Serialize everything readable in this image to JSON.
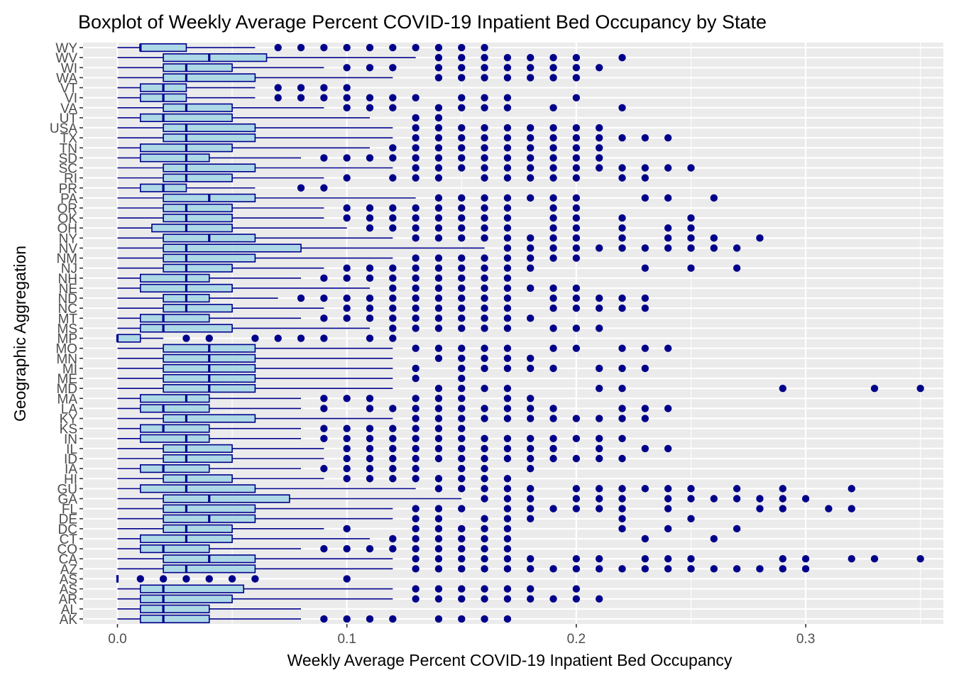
{
  "chart_data": {
    "type": "boxplot",
    "title": "Boxplot of Weekly Average Percent COVID-19 Inpatient Bed Occupancy by State",
    "xlabel": "Weekly Average Percent COVID-19 Inpatient Bed Occupancy",
    "ylabel": "Geographic Aggregation",
    "xlim": [
      -0.015,
      0.36
    ],
    "x_ticks": [
      0.0,
      0.1,
      0.2,
      0.3
    ],
    "x_tick_labels": [
      "0.0",
      "0.1",
      "0.2",
      "0.3"
    ],
    "grid": true,
    "colors": {
      "panel": "#EBEBEB",
      "grid": "#FFFFFF",
      "box_fill": "#ADD8E6",
      "box_line": "#00008B",
      "outlier": "#00008B"
    },
    "boxes": [
      {
        "name": "AK",
        "wmin": 0.0,
        "q1": 0.01,
        "median": 0.02,
        "q3": 0.04,
        "wmax": 0.08,
        "outliers": [
          0.09,
          0.1,
          0.11,
          0.12,
          0.14,
          0.15,
          0.16,
          0.17
        ]
      },
      {
        "name": "AL",
        "wmin": 0.0,
        "q1": 0.01,
        "median": 0.02,
        "q3": 0.04,
        "wmax": 0.08,
        "outliers": []
      },
      {
        "name": "AR",
        "wmin": 0.0,
        "q1": 0.01,
        "median": 0.02,
        "q3": 0.05,
        "wmax": 0.12,
        "outliers": [
          0.13,
          0.14,
          0.15,
          0.16,
          0.17,
          0.18,
          0.19,
          0.2,
          0.21
        ]
      },
      {
        "name": "AS",
        "wmin": 0.0,
        "q1": 0.01,
        "median": 0.02,
        "q3": 0.055,
        "wmax": 0.12,
        "outliers": [
          0.13,
          0.14,
          0.15,
          0.16,
          0.17,
          0.18,
          0.2
        ]
      },
      {
        "name": "AS",
        "wmin": 0.0,
        "q1": 0.0,
        "median": 0.0,
        "q3": 0.0,
        "wmax": 0.0,
        "outliers": [
          0.01,
          0.02,
          0.03,
          0.04,
          0.05,
          0.06,
          0.1
        ]
      },
      {
        "name": "AZ",
        "wmin": 0.0,
        "q1": 0.02,
        "median": 0.03,
        "q3": 0.06,
        "wmax": 0.12,
        "outliers": [
          0.13,
          0.14,
          0.15,
          0.16,
          0.17,
          0.18,
          0.19,
          0.2,
          0.21,
          0.22,
          0.23,
          0.24,
          0.25,
          0.26,
          0.27,
          0.28,
          0.29,
          0.3
        ]
      },
      {
        "name": "CA",
        "wmin": 0.0,
        "q1": 0.02,
        "median": 0.04,
        "q3": 0.06,
        "wmax": 0.12,
        "outliers": [
          0.13,
          0.14,
          0.15,
          0.16,
          0.17,
          0.18,
          0.2,
          0.21,
          0.23,
          0.24,
          0.25,
          0.29,
          0.3,
          0.32,
          0.33,
          0.35
        ]
      },
      {
        "name": "CO",
        "wmin": 0.0,
        "q1": 0.01,
        "median": 0.02,
        "q3": 0.04,
        "wmax": 0.08,
        "outliers": [
          0.09,
          0.1,
          0.11,
          0.12,
          0.13,
          0.14,
          0.15,
          0.16,
          0.17
        ]
      },
      {
        "name": "CT",
        "wmin": 0.0,
        "q1": 0.01,
        "median": 0.03,
        "q3": 0.05,
        "wmax": 0.11,
        "outliers": [
          0.12,
          0.13,
          0.14,
          0.15,
          0.16,
          0.17,
          0.23,
          0.26
        ]
      },
      {
        "name": "DC",
        "wmin": 0.0,
        "q1": 0.02,
        "median": 0.03,
        "q3": 0.05,
        "wmax": 0.09,
        "outliers": [
          0.1,
          0.13,
          0.14,
          0.15,
          0.16,
          0.17,
          0.22,
          0.24,
          0.27
        ]
      },
      {
        "name": "DE",
        "wmin": 0.0,
        "q1": 0.02,
        "median": 0.04,
        "q3": 0.06,
        "wmax": 0.12,
        "outliers": [
          0.13,
          0.14,
          0.16,
          0.17,
          0.18,
          0.22,
          0.25
        ]
      },
      {
        "name": "FL",
        "wmin": 0.0,
        "q1": 0.02,
        "median": 0.03,
        "q3": 0.06,
        "wmax": 0.12,
        "outliers": [
          0.13,
          0.14,
          0.15,
          0.17,
          0.18,
          0.19,
          0.2,
          0.21,
          0.22,
          0.24,
          0.28,
          0.29,
          0.31,
          0.32
        ]
      },
      {
        "name": "GA",
        "wmin": 0.0,
        "q1": 0.02,
        "median": 0.04,
        "q3": 0.075,
        "wmax": 0.15,
        "outliers": [
          0.16,
          0.17,
          0.18,
          0.2,
          0.21,
          0.22,
          0.24,
          0.25,
          0.26,
          0.27,
          0.28,
          0.29,
          0.3
        ]
      },
      {
        "name": "GU",
        "wmin": 0.0,
        "q1": 0.01,
        "median": 0.03,
        "q3": 0.06,
        "wmax": 0.13,
        "outliers": [
          0.14,
          0.15,
          0.16,
          0.17,
          0.18,
          0.2,
          0.21,
          0.22,
          0.23,
          0.24,
          0.25,
          0.27,
          0.29,
          0.32
        ]
      },
      {
        "name": "HI",
        "wmin": 0.0,
        "q1": 0.02,
        "median": 0.03,
        "q3": 0.05,
        "wmax": 0.09,
        "outliers": [
          0.1,
          0.11,
          0.12,
          0.13,
          0.14,
          0.15,
          0.16,
          0.17
        ]
      },
      {
        "name": "IA",
        "wmin": 0.0,
        "q1": 0.01,
        "median": 0.02,
        "q3": 0.04,
        "wmax": 0.08,
        "outliers": [
          0.09,
          0.1,
          0.11,
          0.12,
          0.13,
          0.15,
          0.16,
          0.18
        ]
      },
      {
        "name": "ID",
        "wmin": 0.0,
        "q1": 0.02,
        "median": 0.03,
        "q3": 0.05,
        "wmax": 0.09,
        "outliers": [
          0.1,
          0.11,
          0.12,
          0.13,
          0.14,
          0.15,
          0.16,
          0.17,
          0.18,
          0.19,
          0.2,
          0.21,
          0.22
        ]
      },
      {
        "name": "IL",
        "wmin": 0.0,
        "q1": 0.02,
        "median": 0.03,
        "q3": 0.05,
        "wmax": 0.09,
        "outliers": [
          0.1,
          0.11,
          0.12,
          0.13,
          0.14,
          0.15,
          0.16,
          0.17,
          0.18,
          0.19,
          0.21,
          0.23,
          0.24
        ]
      },
      {
        "name": "IN",
        "wmin": 0.0,
        "q1": 0.01,
        "median": 0.03,
        "q3": 0.04,
        "wmax": 0.08,
        "outliers": [
          0.09,
          0.1,
          0.11,
          0.12,
          0.13,
          0.14,
          0.15,
          0.16,
          0.17,
          0.18,
          0.19,
          0.2,
          0.21,
          0.22
        ]
      },
      {
        "name": "KS",
        "wmin": 0.0,
        "q1": 0.01,
        "median": 0.02,
        "q3": 0.04,
        "wmax": 0.08,
        "outliers": [
          0.09,
          0.1,
          0.11,
          0.12,
          0.13,
          0.14,
          0.15
        ]
      },
      {
        "name": "KY",
        "wmin": 0.0,
        "q1": 0.02,
        "median": 0.03,
        "q3": 0.06,
        "wmax": 0.12,
        "outliers": [
          0.13,
          0.14,
          0.15,
          0.16,
          0.17,
          0.18,
          0.19,
          0.2,
          0.21,
          0.22,
          0.23
        ]
      },
      {
        "name": "LA",
        "wmin": 0.0,
        "q1": 0.01,
        "median": 0.02,
        "q3": 0.04,
        "wmax": 0.08,
        "outliers": [
          0.09,
          0.11,
          0.12,
          0.13,
          0.14,
          0.15,
          0.16,
          0.17,
          0.18,
          0.19,
          0.22,
          0.23,
          0.24
        ]
      },
      {
        "name": "MA",
        "wmin": 0.0,
        "q1": 0.01,
        "median": 0.03,
        "q3": 0.04,
        "wmax": 0.08,
        "outliers": [
          0.09,
          0.1,
          0.11,
          0.13,
          0.14,
          0.15,
          0.17,
          0.18
        ]
      },
      {
        "name": "MD",
        "wmin": 0.0,
        "q1": 0.02,
        "median": 0.04,
        "q3": 0.06,
        "wmax": 0.12,
        "outliers": [
          0.14,
          0.15,
          0.16,
          0.17,
          0.21,
          0.22,
          0.29,
          0.33,
          0.35
        ]
      },
      {
        "name": "ME",
        "wmin": 0.0,
        "q1": 0.02,
        "median": 0.04,
        "q3": 0.06,
        "wmax": 0.12,
        "outliers": [
          0.13,
          0.15
        ]
      },
      {
        "name": "MI",
        "wmin": 0.0,
        "q1": 0.02,
        "median": 0.04,
        "q3": 0.06,
        "wmax": 0.12,
        "outliers": [
          0.13,
          0.15,
          0.16,
          0.17,
          0.18,
          0.19,
          0.21,
          0.22,
          0.23
        ]
      },
      {
        "name": "MN",
        "wmin": 0.0,
        "q1": 0.02,
        "median": 0.04,
        "q3": 0.06,
        "wmax": 0.12,
        "outliers": [
          0.14,
          0.15,
          0.16,
          0.17,
          0.18
        ]
      },
      {
        "name": "MO",
        "wmin": 0.0,
        "q1": 0.02,
        "median": 0.04,
        "q3": 0.06,
        "wmax": 0.12,
        "outliers": [
          0.13,
          0.14,
          0.15,
          0.16,
          0.17,
          0.19,
          0.2,
          0.22,
          0.23,
          0.24
        ]
      },
      {
        "name": "MP",
        "wmin": 0.0,
        "q1": 0.0,
        "median": 0.0,
        "q3": 0.01,
        "wmax": 0.02,
        "outliers": [
          0.03,
          0.04,
          0.06,
          0.07,
          0.08,
          0.09,
          0.11,
          0.12
        ]
      },
      {
        "name": "MS",
        "wmin": 0.0,
        "q1": 0.01,
        "median": 0.02,
        "q3": 0.05,
        "wmax": 0.11,
        "outliers": [
          0.12,
          0.13,
          0.14,
          0.15,
          0.16,
          0.17,
          0.19,
          0.2,
          0.21
        ]
      },
      {
        "name": "MT",
        "wmin": 0.0,
        "q1": 0.01,
        "median": 0.02,
        "q3": 0.04,
        "wmax": 0.08,
        "outliers": [
          0.09,
          0.1,
          0.11,
          0.12,
          0.13,
          0.14,
          0.15,
          0.16,
          0.17,
          0.18
        ]
      },
      {
        "name": "NC",
        "wmin": 0.0,
        "q1": 0.02,
        "median": 0.03,
        "q3": 0.05,
        "wmax": 0.09,
        "outliers": [
          0.1,
          0.11,
          0.12,
          0.13,
          0.14,
          0.15,
          0.16,
          0.17,
          0.19,
          0.2,
          0.21,
          0.22,
          0.23
        ]
      },
      {
        "name": "ND",
        "wmin": 0.0,
        "q1": 0.02,
        "median": 0.03,
        "q3": 0.04,
        "wmax": 0.07,
        "outliers": [
          0.08,
          0.09,
          0.1,
          0.11,
          0.12,
          0.13,
          0.14,
          0.15,
          0.16,
          0.17,
          0.19,
          0.2,
          0.21,
          0.22,
          0.23
        ]
      },
      {
        "name": "NE",
        "wmin": 0.0,
        "q1": 0.01,
        "median": 0.03,
        "q3": 0.05,
        "wmax": 0.11,
        "outliers": [
          0.12,
          0.13,
          0.14,
          0.15,
          0.16,
          0.17,
          0.18,
          0.19,
          0.2
        ]
      },
      {
        "name": "NH",
        "wmin": 0.0,
        "q1": 0.01,
        "median": 0.03,
        "q3": 0.04,
        "wmax": 0.08,
        "outliers": [
          0.09,
          0.1,
          0.11,
          0.12,
          0.13,
          0.14,
          0.15,
          0.16,
          0.17
        ]
      },
      {
        "name": "NJ",
        "wmin": 0.0,
        "q1": 0.02,
        "median": 0.03,
        "q3": 0.05,
        "wmax": 0.09,
        "outliers": [
          0.1,
          0.11,
          0.12,
          0.13,
          0.14,
          0.15,
          0.16,
          0.17,
          0.18,
          0.23,
          0.25,
          0.27
        ]
      },
      {
        "name": "NM",
        "wmin": 0.0,
        "q1": 0.02,
        "median": 0.03,
        "q3": 0.06,
        "wmax": 0.12,
        "outliers": [
          0.13,
          0.14,
          0.15,
          0.16,
          0.17,
          0.18,
          0.19,
          0.2
        ]
      },
      {
        "name": "NV",
        "wmin": 0.0,
        "q1": 0.02,
        "median": 0.03,
        "q3": 0.08,
        "wmax": 0.16,
        "outliers": [
          0.17,
          0.18,
          0.19,
          0.2,
          0.21,
          0.22,
          0.23,
          0.24,
          0.25,
          0.26,
          0.27
        ]
      },
      {
        "name": "NY",
        "wmin": 0.0,
        "q1": 0.02,
        "median": 0.04,
        "q3": 0.06,
        "wmax": 0.12,
        "outliers": [
          0.13,
          0.14,
          0.15,
          0.16,
          0.17,
          0.18,
          0.19,
          0.2,
          0.22,
          0.24,
          0.25,
          0.26,
          0.28
        ]
      },
      {
        "name": "OH",
        "wmin": 0.0,
        "q1": 0.015,
        "median": 0.03,
        "q3": 0.05,
        "wmax": 0.1,
        "outliers": [
          0.11,
          0.12,
          0.13,
          0.14,
          0.15,
          0.16,
          0.17,
          0.19,
          0.2,
          0.22,
          0.24,
          0.25
        ]
      },
      {
        "name": "OK",
        "wmin": 0.0,
        "q1": 0.02,
        "median": 0.03,
        "q3": 0.05,
        "wmax": 0.09,
        "outliers": [
          0.1,
          0.11,
          0.12,
          0.13,
          0.14,
          0.15,
          0.16,
          0.17,
          0.19,
          0.2,
          0.22,
          0.25
        ]
      },
      {
        "name": "OR",
        "wmin": 0.0,
        "q1": 0.02,
        "median": 0.03,
        "q3": 0.05,
        "wmax": 0.09,
        "outliers": [
          0.1,
          0.11,
          0.12,
          0.13,
          0.14,
          0.15,
          0.16,
          0.17,
          0.19,
          0.2
        ]
      },
      {
        "name": "PA",
        "wmin": 0.0,
        "q1": 0.02,
        "median": 0.04,
        "q3": 0.06,
        "wmax": 0.13,
        "outliers": [
          0.14,
          0.15,
          0.16,
          0.17,
          0.18,
          0.19,
          0.2,
          0.23,
          0.24,
          0.26
        ]
      },
      {
        "name": "PR",
        "wmin": 0.0,
        "q1": 0.01,
        "median": 0.02,
        "q3": 0.03,
        "wmax": 0.06,
        "outliers": [
          0.08,
          0.09
        ]
      },
      {
        "name": "RI",
        "wmin": 0.0,
        "q1": 0.02,
        "median": 0.03,
        "q3": 0.05,
        "wmax": 0.09,
        "outliers": [
          0.1,
          0.12,
          0.13,
          0.14,
          0.16,
          0.17,
          0.18,
          0.19,
          0.2,
          0.22,
          0.23
        ]
      },
      {
        "name": "SC",
        "wmin": 0.0,
        "q1": 0.02,
        "median": 0.03,
        "q3": 0.06,
        "wmax": 0.12,
        "outliers": [
          0.13,
          0.14,
          0.15,
          0.16,
          0.17,
          0.18,
          0.19,
          0.2,
          0.21,
          0.22,
          0.23,
          0.24,
          0.25
        ]
      },
      {
        "name": "SD",
        "wmin": 0.0,
        "q1": 0.01,
        "median": 0.03,
        "q3": 0.04,
        "wmax": 0.08,
        "outliers": [
          0.09,
          0.1,
          0.11,
          0.12,
          0.13,
          0.14,
          0.15,
          0.16,
          0.17,
          0.18,
          0.19,
          0.2,
          0.21
        ]
      },
      {
        "name": "TN",
        "wmin": 0.0,
        "q1": 0.01,
        "median": 0.03,
        "q3": 0.05,
        "wmax": 0.11,
        "outliers": [
          0.12,
          0.13,
          0.14,
          0.15,
          0.16,
          0.17,
          0.18,
          0.19,
          0.2,
          0.21
        ]
      },
      {
        "name": "TX",
        "wmin": 0.0,
        "q1": 0.02,
        "median": 0.03,
        "q3": 0.06,
        "wmax": 0.12,
        "outliers": [
          0.13,
          0.14,
          0.15,
          0.16,
          0.17,
          0.18,
          0.19,
          0.2,
          0.21,
          0.22,
          0.23,
          0.24
        ]
      },
      {
        "name": "USA",
        "wmin": 0.0,
        "q1": 0.02,
        "median": 0.03,
        "q3": 0.06,
        "wmax": 0.12,
        "outliers": [
          0.13,
          0.14,
          0.15,
          0.16,
          0.17,
          0.18,
          0.19,
          0.2,
          0.21
        ]
      },
      {
        "name": "UT",
        "wmin": 0.0,
        "q1": 0.01,
        "median": 0.02,
        "q3": 0.05,
        "wmax": 0.11,
        "outliers": [
          0.13,
          0.14
        ]
      },
      {
        "name": "VA",
        "wmin": 0.0,
        "q1": 0.02,
        "median": 0.03,
        "q3": 0.05,
        "wmax": 0.09,
        "outliers": [
          0.1,
          0.11,
          0.12,
          0.14,
          0.15,
          0.16,
          0.17,
          0.19,
          0.22
        ]
      },
      {
        "name": "VI",
        "wmin": 0.0,
        "q1": 0.01,
        "median": 0.02,
        "q3": 0.03,
        "wmax": 0.06,
        "outliers": [
          0.07,
          0.08,
          0.09,
          0.1,
          0.11,
          0.12,
          0.13,
          0.15,
          0.16,
          0.17,
          0.2
        ]
      },
      {
        "name": "VT",
        "wmin": 0.0,
        "q1": 0.01,
        "median": 0.02,
        "q3": 0.03,
        "wmax": 0.06,
        "outliers": [
          0.07,
          0.08,
          0.09,
          0.1
        ]
      },
      {
        "name": "WA",
        "wmin": 0.0,
        "q1": 0.02,
        "median": 0.03,
        "q3": 0.06,
        "wmax": 0.12,
        "outliers": [
          0.14,
          0.15,
          0.16,
          0.17,
          0.18,
          0.19,
          0.2
        ]
      },
      {
        "name": "WI",
        "wmin": 0.0,
        "q1": 0.02,
        "median": 0.03,
        "q3": 0.05,
        "wmax": 0.09,
        "outliers": [
          0.1,
          0.11,
          0.12,
          0.14,
          0.15,
          0.16,
          0.17,
          0.18,
          0.19,
          0.2,
          0.21
        ]
      },
      {
        "name": "WV",
        "wmin": 0.0,
        "q1": 0.02,
        "median": 0.04,
        "q3": 0.065,
        "wmax": 0.13,
        "outliers": [
          0.14,
          0.15,
          0.16,
          0.17,
          0.18,
          0.19,
          0.2,
          0.22
        ]
      },
      {
        "name": "WY",
        "wmin": 0.0,
        "q1": 0.01,
        "median": 0.01,
        "q3": 0.03,
        "wmax": 0.06,
        "outliers": [
          0.07,
          0.08,
          0.09,
          0.1,
          0.11,
          0.12,
          0.13,
          0.14,
          0.15,
          0.16
        ]
      }
    ]
  }
}
